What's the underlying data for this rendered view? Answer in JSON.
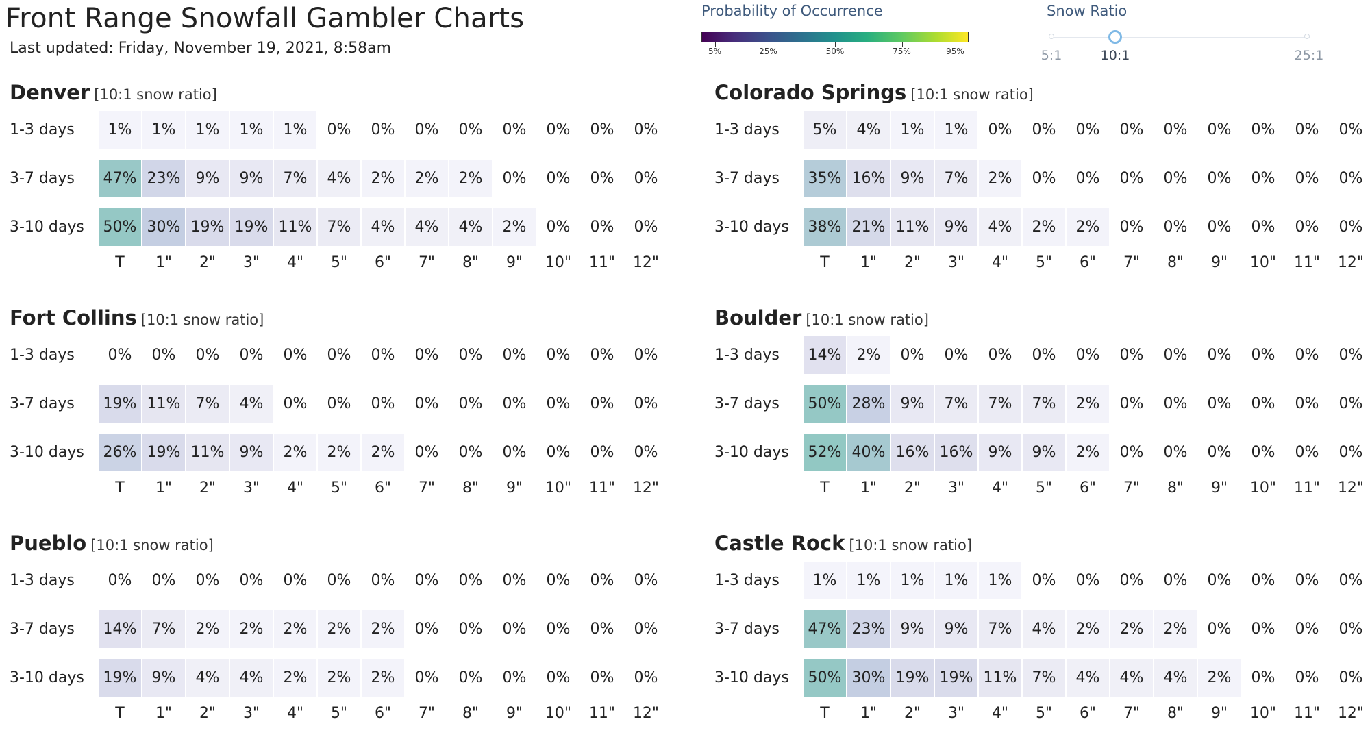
{
  "header": {
    "title": "Front Range Snowfall Gambler Charts",
    "updated": "Last updated: Friday, November 19, 2021, 8:58am"
  },
  "colorbar": {
    "title": "Probability of Occurrence",
    "ticks": [
      "5%",
      "25%",
      "50%",
      "75%",
      "95%"
    ],
    "tick_values": [
      5,
      25,
      50,
      75,
      95
    ],
    "colormap": "viridis"
  },
  "snow_ratio": {
    "title": "Snow Ratio",
    "options": [
      "5:1",
      "10:1",
      "25:1"
    ],
    "selected": "10:1"
  },
  "columns": [
    "T",
    "1\"",
    "2\"",
    "3\"",
    "4\"",
    "5\"",
    "6\"",
    "7\"",
    "8\"",
    "9\"",
    "10\"",
    "11\"",
    "12\""
  ],
  "row_labels": [
    "1-3 days",
    "3-7 days",
    "3-10 days"
  ],
  "cities": [
    {
      "name": "Denver",
      "ratio_label": "[10:1 snow ratio]",
      "rows": [
        [
          1,
          1,
          1,
          1,
          1,
          0,
          0,
          0,
          0,
          0,
          0,
          0,
          0
        ],
        [
          47,
          23,
          9,
          9,
          7,
          4,
          2,
          2,
          2,
          0,
          0,
          0,
          0
        ],
        [
          50,
          30,
          19,
          19,
          11,
          7,
          4,
          4,
          4,
          2,
          0,
          0,
          0
        ]
      ]
    },
    {
      "name": "Colorado Springs",
      "ratio_label": "[10:1 snow ratio]",
      "rows": [
        [
          5,
          4,
          1,
          1,
          0,
          0,
          0,
          0,
          0,
          0,
          0,
          0,
          0
        ],
        [
          35,
          16,
          9,
          7,
          2,
          0,
          0,
          0,
          0,
          0,
          0,
          0,
          0
        ],
        [
          38,
          21,
          11,
          9,
          4,
          2,
          2,
          0,
          0,
          0,
          0,
          0,
          0
        ]
      ]
    },
    {
      "name": "Fort Collins",
      "ratio_label": "[10:1 snow ratio]",
      "rows": [
        [
          0,
          0,
          0,
          0,
          0,
          0,
          0,
          0,
          0,
          0,
          0,
          0,
          0
        ],
        [
          19,
          11,
          7,
          4,
          0,
          0,
          0,
          0,
          0,
          0,
          0,
          0,
          0
        ],
        [
          26,
          19,
          11,
          9,
          2,
          2,
          2,
          0,
          0,
          0,
          0,
          0,
          0
        ]
      ]
    },
    {
      "name": "Boulder",
      "ratio_label": "[10:1 snow ratio]",
      "rows": [
        [
          14,
          2,
          0,
          0,
          0,
          0,
          0,
          0,
          0,
          0,
          0,
          0,
          0
        ],
        [
          50,
          28,
          9,
          7,
          7,
          7,
          2,
          0,
          0,
          0,
          0,
          0,
          0
        ],
        [
          52,
          40,
          16,
          16,
          9,
          9,
          2,
          0,
          0,
          0,
          0,
          0,
          0
        ]
      ]
    },
    {
      "name": "Pueblo",
      "ratio_label": "[10:1 snow ratio]",
      "rows": [
        [
          0,
          0,
          0,
          0,
          0,
          0,
          0,
          0,
          0,
          0,
          0,
          0,
          0
        ],
        [
          14,
          7,
          2,
          2,
          2,
          2,
          2,
          0,
          0,
          0,
          0,
          0,
          0
        ],
        [
          19,
          9,
          4,
          4,
          2,
          2,
          2,
          0,
          0,
          0,
          0,
          0,
          0
        ]
      ]
    },
    {
      "name": "Castle Rock",
      "ratio_label": "[10:1 snow ratio]",
      "rows": [
        [
          1,
          1,
          1,
          1,
          1,
          0,
          0,
          0,
          0,
          0,
          0,
          0,
          0
        ],
        [
          47,
          23,
          9,
          9,
          7,
          4,
          2,
          2,
          2,
          0,
          0,
          0,
          0
        ],
        [
          50,
          30,
          19,
          19,
          11,
          7,
          4,
          4,
          4,
          2,
          0,
          0,
          0
        ]
      ]
    }
  ]
}
